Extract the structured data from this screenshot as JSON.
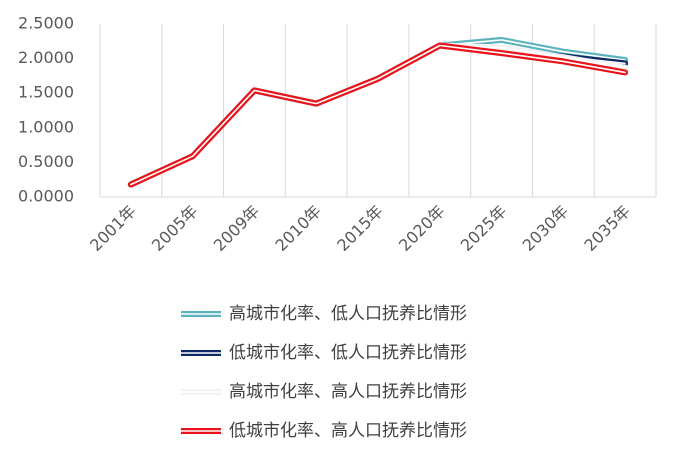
{
  "chart_data": {
    "type": "line",
    "categories": [
      "2001年",
      "2005年",
      "2009年",
      "2010年",
      "2015年",
      "2020年",
      "2025年",
      "2030年",
      "2035年"
    ],
    "ylim": [
      0,
      2.5
    ],
    "yticks": [
      "0.0000",
      "0.5000",
      "1.0000",
      "1.5000",
      "2.0000",
      "2.5000"
    ],
    "grid": "vertical",
    "legend_position": "bottom",
    "series": [
      {
        "name": "高城市化率、低人口抚养比情形",
        "color": "#5BB3BE",
        "values": [
          0.18,
          0.59,
          1.54,
          1.35,
          1.71,
          2.19,
          2.27,
          2.1,
          1.98
        ]
      },
      {
        "name": "低城市化率、低人口抚养比情形",
        "color": "#0E2765",
        "values": [
          0.18,
          0.59,
          1.54,
          1.35,
          1.71,
          2.19,
          2.12,
          2.03,
          1.93
        ]
      },
      {
        "name": "高城市化率、高人口抚养比情形",
        "color": "#F2F2F2",
        "values": [
          0.18,
          0.59,
          1.54,
          1.35,
          1.71,
          2.19,
          2.16,
          2.02,
          1.87
        ]
      },
      {
        "name": "低城市化率、高人口抚养比情形",
        "color": "#E8141A",
        "values": [
          0.18,
          0.59,
          1.54,
          1.35,
          1.71,
          2.19,
          2.08,
          1.96,
          1.8
        ]
      }
    ]
  }
}
